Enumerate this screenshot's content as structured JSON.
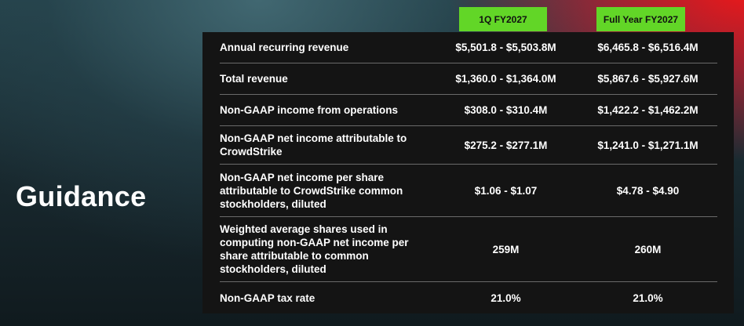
{
  "page": {
    "title": "Guidance"
  },
  "columns": {
    "q1": "1Q FY2027",
    "fy": "Full Year FY2027"
  },
  "rows": [
    {
      "label": "Annual recurring revenue",
      "q1": "$5,501.8 - $5,503.8M",
      "fy": "$6,465.8 - $6,516.4M"
    },
    {
      "label": "Total revenue",
      "q1": "$1,360.0 - $1,364.0M",
      "fy": "$5,867.6 - $5,927.6M"
    },
    {
      "label": "Non-GAAP income from operations",
      "q1": "$308.0 - $310.4M",
      "fy": "$1,422.2 - $1,462.2M"
    },
    {
      "label": "Non-GAAP net income attributable to CrowdStrike",
      "q1": "$275.2 - $277.1M",
      "fy": "$1,241.0 - $1,271.1M"
    },
    {
      "label": "Non-GAAP net income per share attributable to CrowdStrike common stockholders, diluted",
      "q1": "$1.06 - $1.07",
      "fy": "$4.78 -  $4.90"
    },
    {
      "label": "Weighted average shares used in computing non-GAAP net income per share attributable to common stockholders, diluted",
      "q1": "259M",
      "fy": "260M"
    },
    {
      "label": "Non-GAAP tax rate",
      "q1": "21.0%",
      "fy": "21.0%"
    }
  ]
}
